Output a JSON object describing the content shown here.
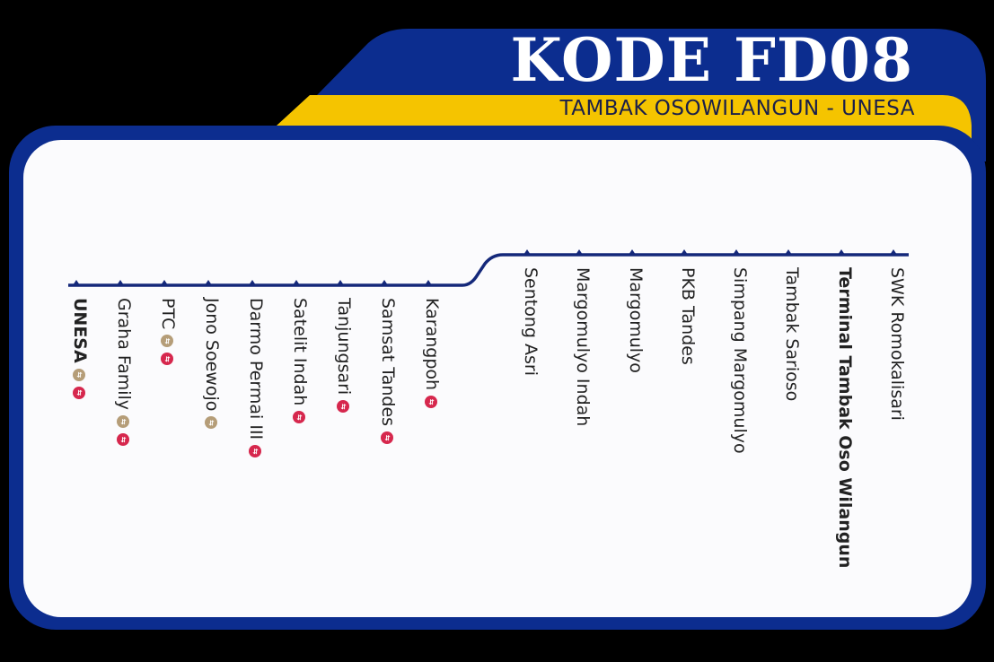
{
  "header": {
    "title": "KODE FD08",
    "route": "TAMBAK OSOWILANGUN - UNESA"
  },
  "colors": {
    "frame_blue": "#0c2d8f",
    "accent_yellow": "#f5c400",
    "route_line": "#14287a",
    "panel": "#fbfbfd",
    "transfer_red": "#d6274d",
    "transfer_gold": "#b59d78"
  },
  "route_map": {
    "stops": [
      {
        "name": "SWK Romokalisari",
        "bold": false,
        "transfers": []
      },
      {
        "name": "Terminal Tambak Oso Wilangun",
        "bold": true,
        "transfers": []
      },
      {
        "name": "Tambak Sarioso",
        "bold": false,
        "transfers": []
      },
      {
        "name": "Simpang Margomulyo",
        "bold": false,
        "transfers": []
      },
      {
        "name": "PKB Tandes",
        "bold": false,
        "transfers": []
      },
      {
        "name": "Margomulyo",
        "bold": false,
        "transfers": []
      },
      {
        "name": "Margomulyo Indah",
        "bold": false,
        "transfers": []
      },
      {
        "name": "Sentong Asri",
        "bold": false,
        "transfers": []
      },
      {
        "name": "Karangpoh",
        "bold": false,
        "transfers": [
          "red"
        ]
      },
      {
        "name": "Samsat Tandes",
        "bold": false,
        "transfers": [
          "red"
        ]
      },
      {
        "name": "Tanjungsari",
        "bold": false,
        "transfers": [
          "red"
        ]
      },
      {
        "name": "Satelit Indah",
        "bold": false,
        "transfers": [
          "red"
        ]
      },
      {
        "name": "Darmo Permai III",
        "bold": false,
        "transfers": [
          "red"
        ]
      },
      {
        "name": "Jono Soewojo",
        "bold": false,
        "transfers": [
          "gold"
        ]
      },
      {
        "name": "PTC",
        "bold": false,
        "transfers": [
          "gold",
          "red"
        ]
      },
      {
        "name": "Graha Family",
        "bold": false,
        "transfers": [
          "gold",
          "red"
        ]
      },
      {
        "name": "UNESA",
        "bold": true,
        "transfers": [
          "gold",
          "red"
        ]
      }
    ]
  }
}
